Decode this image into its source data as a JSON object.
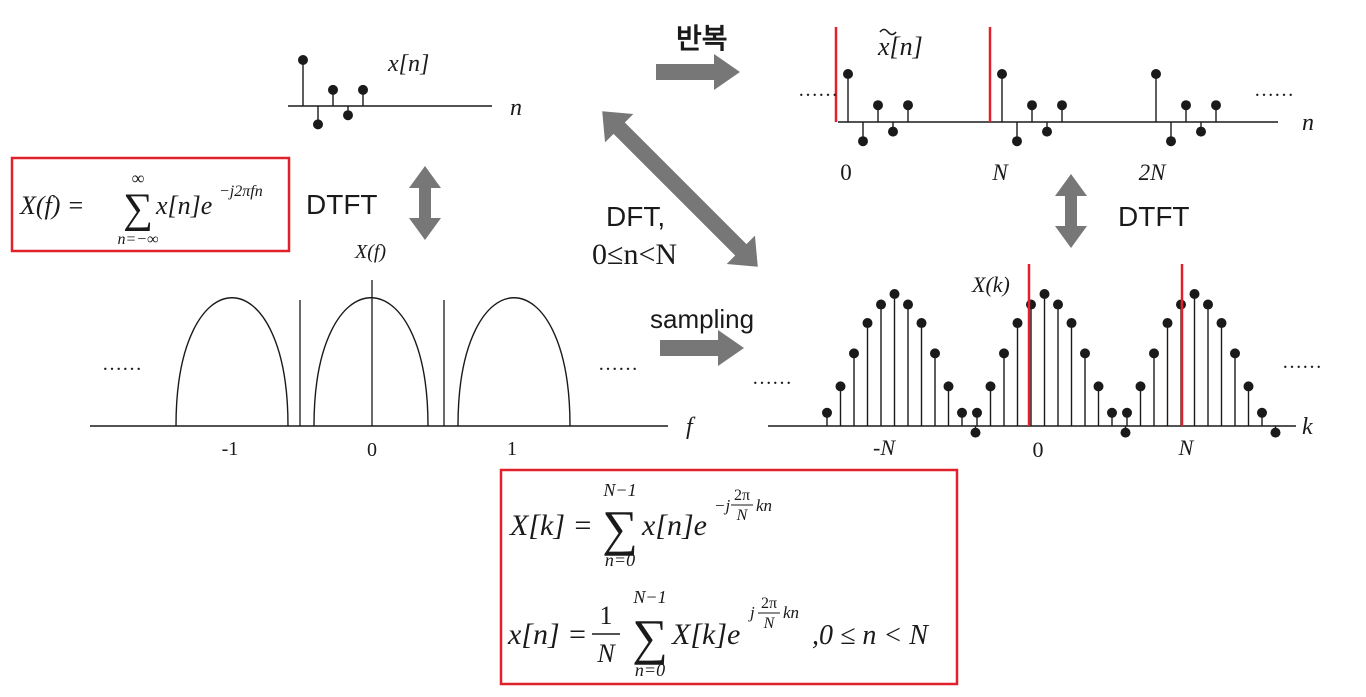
{
  "panels": {
    "xn": {
      "label_x": "x",
      "label_bracket": "[n]",
      "axis": "n",
      "values": [
        1.0,
        -0.4,
        0.35,
        -0.2,
        0.35
      ]
    },
    "xtilde": {
      "label_x": "x",
      "label_bracket": "[n]",
      "axis": "n",
      "ticks": [
        "0",
        "N",
        "2N"
      ],
      "values": [
        1.0,
        -0.4,
        0.35,
        -0.2,
        0.35
      ],
      "periods": 3,
      "dots": "……"
    },
    "xf": {
      "label": "X(f)",
      "axis": "f",
      "ticks": [
        "-1",
        "0",
        "1"
      ],
      "dots": "……"
    },
    "xk": {
      "label": "X(k)",
      "axis": "k",
      "ticks": [
        "-N",
        "0",
        "N"
      ],
      "values": [
        0.1,
        0.3,
        0.55,
        0.78,
        0.92,
        1.0,
        0.92,
        0.78,
        0.55,
        0.3,
        0.1,
        -0.05
      ],
      "periods": 3,
      "dots": "……"
    }
  },
  "labels": {
    "repeat": "반복",
    "dtft_left": "DTFT",
    "dtft_right": "DTFT",
    "dft": "DFT,",
    "dft_range": "0≤n<N",
    "sampling": "sampling"
  },
  "formulas": {
    "dtft": {
      "lhs": "X(f) =",
      "sum_upper": "∞",
      "sum_lower": "n=−∞",
      "body": "x[n]e",
      "exp": "−j2πfn"
    },
    "dft": {
      "lhs": "X[k] =",
      "sum_upper": "N−1",
      "sum_lower": "n=0",
      "body": "x[n]e",
      "exp_prefix": "−j",
      "exp_num": "2π",
      "exp_den": "N",
      "exp_suffix": "kn"
    },
    "idft": {
      "lhs": "x[n] =",
      "frac_num": "1",
      "frac_den": "N",
      "sum_upper": "N−1",
      "sum_lower": "n=0",
      "body": "X[k]e",
      "exp_prefix": "j",
      "exp_num": "2π",
      "exp_den": "N",
      "exp_suffix": "kn",
      "range": ",0 ≤ n < N"
    }
  },
  "colors": {
    "box_border": "#e0202a",
    "arrow": "#777777",
    "ink": "#1a1a1a",
    "marker": "#e0202a"
  }
}
